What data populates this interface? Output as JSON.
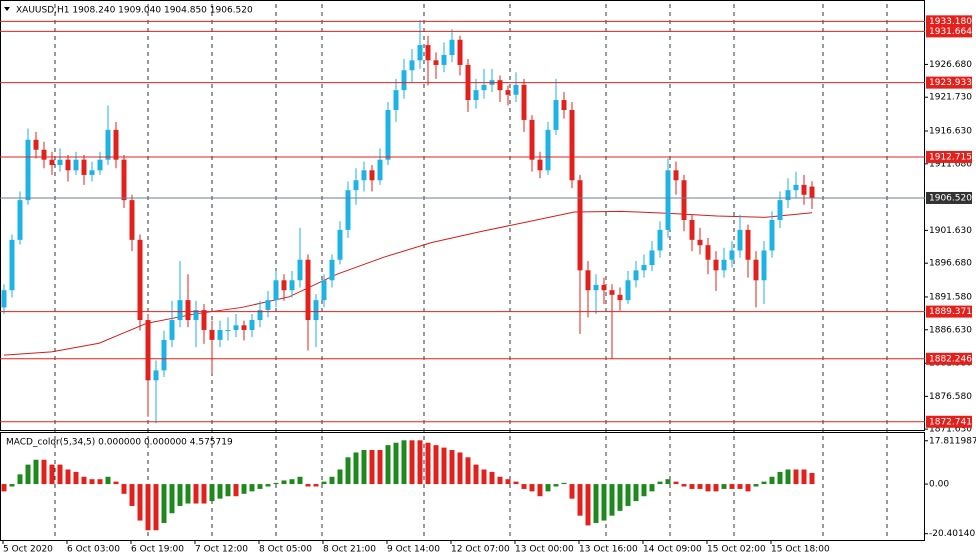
{
  "chart_data": [
    {
      "type": "candlestick",
      "title": "XAUUSD,H1  1908.240 1909.040 1904.850 1906.520",
      "up_color": "#1eb3e6",
      "down_color": "#e3201b",
      "ma_color": "#d21d1d",
      "level_color": "#e3201b",
      "last_color": "#6b7f93",
      "ylim": [
        1871.5,
        1935.8
      ],
      "yticks": [
        {
          "value": 1926.68,
          "label": "1926.680"
        },
        {
          "value": 1921.73,
          "label": "1921.730"
        },
        {
          "value": 1916.63,
          "label": "1916.630"
        },
        {
          "value": 1911.68,
          "label": "1911.680"
        },
        {
          "value": 1901.63,
          "label": "1901.630"
        },
        {
          "value": 1896.68,
          "label": "1896.680"
        },
        {
          "value": 1891.58,
          "label": "1891.580"
        },
        {
          "value": 1886.63,
          "label": "1886.630"
        },
        {
          "value": 1881.58,
          "label": "1881.580"
        },
        {
          "value": 1876.58,
          "label": "1876.580"
        },
        {
          "value": 1871.63,
          "label": "1871.630"
        }
      ],
      "levels": [
        {
          "value": 1933.18,
          "label": "1933.180"
        },
        {
          "value": 1931.664,
          "label": "1931.664"
        },
        {
          "value": 1923.933,
          "label": "1923.933"
        },
        {
          "value": 1912.715,
          "label": "1912.715"
        },
        {
          "value": 1889.371,
          "label": "1889.371"
        },
        {
          "value": 1882.246,
          "label": "1882.246"
        },
        {
          "value": 1872.741,
          "label": "1872.741"
        }
      ],
      "last_price": {
        "value": 1906.52,
        "label": "1906.520"
      },
      "x_labels": [
        "5 Oct 2020",
        "6 Oct 03:00",
        "6 Oct 19:00",
        "7 Oct 12:00",
        "8 Oct 05:00",
        "8 Oct 21:00",
        "9 Oct 14:00",
        "12 Oct 07:00",
        "13 Oct 00:00",
        "13 Oct 16:00",
        "14 Oct 09:00",
        "15 Oct 02:00",
        "15 Oct 18:00"
      ],
      "ohlc": [
        [
          1890.0,
          1893.5,
          1889.0,
          1892.6
        ],
        [
          1892.6,
          1901.0,
          1891.5,
          1900.2
        ],
        [
          1900.2,
          1907.5,
          1899.5,
          1906.2
        ],
        [
          1906.2,
          1917.0,
          1905.5,
          1915.3
        ],
        [
          1915.3,
          1916.5,
          1912.5,
          1913.8
        ],
        [
          1913.8,
          1915.0,
          1911.0,
          1912.3
        ],
        [
          1912.3,
          1913.5,
          1910.0,
          1911.5
        ],
        [
          1911.5,
          1914.0,
          1910.5,
          1912.3
        ],
        [
          1912.3,
          1913.0,
          1909.0,
          1910.7
        ],
        [
          1910.7,
          1913.5,
          1910.0,
          1912.3
        ],
        [
          1912.3,
          1913.0,
          1908.5,
          1910.0
        ],
        [
          1910.0,
          1912.0,
          1909.0,
          1910.7
        ],
        [
          1910.7,
          1913.5,
          1910.0,
          1912.3
        ],
        [
          1912.3,
          1920.5,
          1911.5,
          1916.8
        ],
        [
          1916.8,
          1918.0,
          1911.0,
          1912.3
        ],
        [
          1912.3,
          1913.0,
          1905.0,
          1906.2
        ],
        [
          1906.2,
          1907.0,
          1898.5,
          1900.2
        ],
        [
          1900.2,
          1901.0,
          1886.5,
          1888.1
        ],
        [
          1888.1,
          1889.0,
          1873.5,
          1879.0
        ],
        [
          1879.0,
          1882.0,
          1872.5,
          1880.5
        ],
        [
          1880.5,
          1886.5,
          1879.5,
          1885.1
        ],
        [
          1885.1,
          1891.0,
          1884.0,
          1888.1
        ],
        [
          1888.1,
          1897.0,
          1887.0,
          1891.1
        ],
        [
          1891.1,
          1895.0,
          1887.0,
          1888.1
        ],
        [
          1888.1,
          1891.0,
          1884.0,
          1889.6
        ],
        [
          1889.6,
          1890.5,
          1884.5,
          1886.6
        ],
        [
          1886.6,
          1888.0,
          1880.0,
          1885.1
        ],
        [
          1885.1,
          1888.0,
          1884.0,
          1886.6
        ],
        [
          1886.6,
          1888.5,
          1885.0,
          1886.6
        ],
        [
          1886.6,
          1889.0,
          1885.5,
          1887.3
        ],
        [
          1887.3,
          1888.0,
          1885.0,
          1886.6
        ],
        [
          1886.6,
          1889.0,
          1885.5,
          1888.1
        ],
        [
          1888.1,
          1891.0,
          1887.0,
          1889.6
        ],
        [
          1889.6,
          1892.5,
          1888.5,
          1891.1
        ],
        [
          1891.1,
          1895.5,
          1890.0,
          1894.1
        ],
        [
          1894.1,
          1895.0,
          1891.0,
          1892.6
        ],
        [
          1892.6,
          1895.5,
          1891.5,
          1894.1
        ],
        [
          1894.1,
          1902.0,
          1893.0,
          1897.2
        ],
        [
          1897.2,
          1898.0,
          1883.5,
          1888.1
        ],
        [
          1888.1,
          1892.0,
          1884.0,
          1891.1
        ],
        [
          1891.1,
          1895.0,
          1890.0,
          1894.1
        ],
        [
          1894.1,
          1898.0,
          1893.0,
          1897.2
        ],
        [
          1897.2,
          1903.0,
          1896.5,
          1901.7
        ],
        [
          1901.7,
          1909.0,
          1900.5,
          1907.7
        ],
        [
          1907.7,
          1911.0,
          1905.5,
          1909.2
        ],
        [
          1909.2,
          1912.0,
          1907.5,
          1910.7
        ],
        [
          1910.7,
          1911.5,
          1907.5,
          1909.2
        ],
        [
          1909.2,
          1914.0,
          1908.5,
          1912.3
        ],
        [
          1912.3,
          1921.0,
          1911.5,
          1919.8
        ],
        [
          1919.8,
          1924.5,
          1918.0,
          1922.8
        ],
        [
          1922.8,
          1927.5,
          1921.5,
          1925.8
        ],
        [
          1925.8,
          1929.0,
          1924.0,
          1927.3
        ],
        [
          1927.3,
          1933.4,
          1926.0,
          1929.6
        ],
        [
          1929.6,
          1931.0,
          1923.5,
          1927.3
        ],
        [
          1927.3,
          1928.5,
          1924.5,
          1926.6
        ],
        [
          1926.6,
          1930.0,
          1925.5,
          1928.1
        ],
        [
          1928.1,
          1932.0,
          1927.0,
          1930.4
        ],
        [
          1930.4,
          1931.0,
          1925.0,
          1926.6
        ],
        [
          1926.6,
          1927.5,
          1919.5,
          1921.3
        ],
        [
          1921.3,
          1924.5,
          1920.0,
          1922.8
        ],
        [
          1922.8,
          1926.0,
          1921.5,
          1923.6
        ],
        [
          1923.6,
          1926.0,
          1922.5,
          1924.3
        ],
        [
          1924.3,
          1925.0,
          1921.0,
          1922.8
        ],
        [
          1922.8,
          1923.5,
          1920.5,
          1922.1
        ],
        [
          1922.1,
          1925.5,
          1921.0,
          1923.6
        ],
        [
          1923.6,
          1924.5,
          1916.5,
          1918.3
        ],
        [
          1918.3,
          1919.0,
          1910.5,
          1912.3
        ],
        [
          1912.3,
          1913.5,
          1909.5,
          1910.7
        ],
        [
          1910.7,
          1918.0,
          1910.0,
          1916.8
        ],
        [
          1916.8,
          1924.5,
          1916.0,
          1921.3
        ],
        [
          1921.3,
          1922.5,
          1918.5,
          1919.8
        ],
        [
          1919.8,
          1921.0,
          1908.0,
          1909.2
        ],
        [
          1909.2,
          1910.0,
          1886.0,
          1895.6
        ],
        [
          1895.6,
          1897.0,
          1888.5,
          1892.6
        ],
        [
          1892.6,
          1895.0,
          1889.0,
          1893.4
        ],
        [
          1893.4,
          1894.5,
          1890.5,
          1892.6
        ],
        [
          1892.6,
          1893.5,
          1882.3,
          1891.9
        ],
        [
          1891.9,
          1893.0,
          1889.5,
          1891.1
        ],
        [
          1891.1,
          1895.5,
          1890.5,
          1894.1
        ],
        [
          1894.1,
          1897.0,
          1893.0,
          1895.6
        ],
        [
          1895.6,
          1898.0,
          1894.5,
          1896.4
        ],
        [
          1896.4,
          1900.0,
          1895.5,
          1898.6
        ],
        [
          1898.6,
          1903.0,
          1897.5,
          1901.7
        ],
        [
          1901.7,
          1912.5,
          1900.5,
          1910.7
        ],
        [
          1910.7,
          1912.0,
          1907.0,
          1909.2
        ],
        [
          1909.2,
          1910.0,
          1901.5,
          1903.2
        ],
        [
          1903.2,
          1904.0,
          1898.5,
          1900.2
        ],
        [
          1900.2,
          1902.0,
          1898.0,
          1899.4
        ],
        [
          1899.4,
          1900.5,
          1895.0,
          1897.2
        ],
        [
          1897.2,
          1898.5,
          1892.5,
          1895.6
        ],
        [
          1895.6,
          1899.0,
          1894.5,
          1897.2
        ],
        [
          1897.2,
          1900.0,
          1896.0,
          1898.6
        ],
        [
          1898.6,
          1904.0,
          1897.5,
          1901.7
        ],
        [
          1901.7,
          1902.5,
          1894.5,
          1897.2
        ],
        [
          1897.2,
          1898.5,
          1890.0,
          1894.1
        ],
        [
          1894.1,
          1900.0,
          1890.5,
          1898.6
        ],
        [
          1898.6,
          1904.5,
          1897.5,
          1903.2
        ],
        [
          1903.2,
          1907.5,
          1902.0,
          1906.2
        ],
        [
          1906.2,
          1909.5,
          1905.0,
          1907.7
        ],
        [
          1907.7,
          1910.5,
          1906.5,
          1908.5
        ],
        [
          1908.5,
          1910.0,
          1905.5,
          1907.0
        ],
        [
          1908.24,
          1909.04,
          1904.85,
          1906.52
        ]
      ],
      "ma_values": [
        1882.8,
        1883.3,
        1884.6,
        1887.6,
        1889.0,
        1890.0,
        1891.6,
        1895.0,
        1897.6,
        1899.8,
        1901.4,
        1902.9,
        1904.4,
        1904.5,
        1904.2,
        1903.8,
        1903.6,
        1904.3
      ]
    },
    {
      "type": "bar",
      "title": "MACD_color(5,34,5) 0.000000 0.000000 4.575719",
      "up_color": "#1e8a1e",
      "down_color": "#e3201b",
      "ylim": [
        -23.0,
        21.0
      ],
      "yticks": [
        {
          "value": 17.811987,
          "label": "17.811987"
        },
        {
          "value": 0,
          "label": "0.00"
        },
        {
          "value": -20.401407,
          "label": "-20.401407"
        }
      ],
      "values": [
        -3,
        -1,
        4,
        8,
        10,
        10,
        8,
        8,
        6,
        5,
        3,
        2,
        2,
        3,
        1,
        -4,
        -9,
        -15,
        -19,
        -19,
        -16,
        -12,
        -9,
        -8,
        -8,
        -8,
        -7,
        -6,
        -5,
        -5,
        -4,
        -3,
        -2,
        -1,
        0.5,
        1.5,
        2,
        3,
        -1,
        -1,
        1,
        3,
        6,
        11,
        13,
        14,
        14,
        14,
        16,
        17,
        18,
        18,
        18,
        17,
        16,
        15,
        14,
        13,
        11,
        8,
        6,
        5,
        3,
        2,
        1,
        -2,
        -3,
        -5,
        -3,
        -1,
        0.5,
        -6,
        -13,
        -17,
        -16,
        -15,
        -13,
        -11,
        -9,
        -7,
        -5,
        -3,
        1,
        2,
        1,
        -1,
        -2,
        -2,
        -3,
        -3,
        -2,
        -2,
        -2,
        -3,
        -1,
        1,
        3,
        5,
        6,
        6,
        6,
        4.575719
      ]
    }
  ]
}
